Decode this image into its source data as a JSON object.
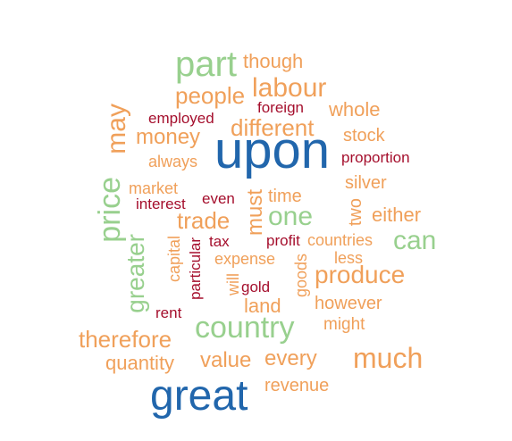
{
  "colors": {
    "blue": "#2166ac",
    "green": "#98d08e",
    "orange": "#f0a05a",
    "red": "#a50f2d"
  },
  "words": [
    {
      "text": "upon",
      "color": "blue",
      "weight": 72
    },
    {
      "text": "great",
      "color": "blue",
      "weight": 50
    },
    {
      "text": "part",
      "color": "green",
      "weight": 38
    },
    {
      "text": "country",
      "color": "green",
      "weight": 34
    },
    {
      "text": "price",
      "color": "green",
      "weight": 32
    },
    {
      "text": "much",
      "color": "orange",
      "weight": 30
    },
    {
      "text": "labour",
      "color": "orange",
      "weight": 28
    },
    {
      "text": "one",
      "color": "green",
      "weight": 28
    },
    {
      "text": "can",
      "color": "green",
      "weight": 28
    },
    {
      "text": "produce",
      "color": "orange",
      "weight": 28
    },
    {
      "text": "greater",
      "color": "green",
      "weight": 28
    },
    {
      "text": "may",
      "color": "orange",
      "weight": 28
    },
    {
      "text": "people",
      "color": "orange",
      "weight": 26
    },
    {
      "text": "different",
      "color": "orange",
      "weight": 26
    },
    {
      "text": "trade",
      "color": "orange",
      "weight": 26
    },
    {
      "text": "must",
      "color": "orange",
      "weight": 26
    },
    {
      "text": "therefore",
      "color": "orange",
      "weight": 26
    },
    {
      "text": "money",
      "color": "orange",
      "weight": 24
    },
    {
      "text": "value",
      "color": "orange",
      "weight": 24
    },
    {
      "text": "every",
      "color": "orange",
      "weight": 24
    },
    {
      "text": "whole",
      "color": "orange",
      "weight": 22
    },
    {
      "text": "either",
      "color": "orange",
      "weight": 22
    },
    {
      "text": "land",
      "color": "orange",
      "weight": 22
    },
    {
      "text": "quantity",
      "color": "orange",
      "weight": 22
    },
    {
      "text": "though",
      "color": "orange",
      "weight": 22
    },
    {
      "text": "silver",
      "color": "orange",
      "weight": 20
    },
    {
      "text": "stock",
      "color": "orange",
      "weight": 20
    },
    {
      "text": "time",
      "color": "orange",
      "weight": 20
    },
    {
      "text": "revenue",
      "color": "orange",
      "weight": 20
    },
    {
      "text": "however",
      "color": "orange",
      "weight": 20
    },
    {
      "text": "two",
      "color": "orange",
      "weight": 20
    },
    {
      "text": "might",
      "color": "orange",
      "weight": 18
    },
    {
      "text": "expense",
      "color": "orange",
      "weight": 18
    },
    {
      "text": "always",
      "color": "orange",
      "weight": 18
    },
    {
      "text": "market",
      "color": "orange",
      "weight": 18
    },
    {
      "text": "capital",
      "color": "orange",
      "weight": 18
    },
    {
      "text": "countries",
      "color": "orange",
      "weight": 18
    },
    {
      "text": "less",
      "color": "orange",
      "weight": 18
    },
    {
      "text": "goods",
      "color": "orange",
      "weight": 18
    },
    {
      "text": "will",
      "color": "orange",
      "weight": 18
    },
    {
      "text": "foreign",
      "color": "red",
      "weight": 17
    },
    {
      "text": "employed",
      "color": "red",
      "weight": 17
    },
    {
      "text": "proportion",
      "color": "red",
      "weight": 17
    },
    {
      "text": "even",
      "color": "red",
      "weight": 17
    },
    {
      "text": "interest",
      "color": "red",
      "weight": 17
    },
    {
      "text": "tax",
      "color": "red",
      "weight": 17
    },
    {
      "text": "profit",
      "color": "red",
      "weight": 17
    },
    {
      "text": "particular",
      "color": "red",
      "weight": 17
    },
    {
      "text": "gold",
      "color": "red",
      "weight": 17
    },
    {
      "text": "rent",
      "color": "red",
      "weight": 17
    }
  ]
}
